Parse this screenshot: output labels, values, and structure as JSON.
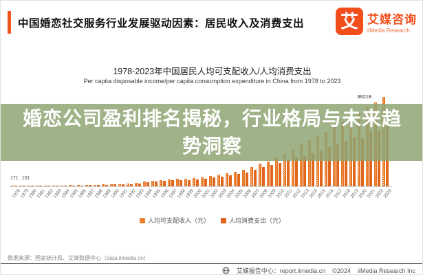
{
  "header": {
    "title": "中国婚恋社交服务行业发展驱动因素：居民收入及消费支出",
    "logo": {
      "glyph": "艾",
      "name_cn": "艾媒咨询",
      "name_en": "iiMedia Research"
    }
  },
  "chart": {
    "title": "1978-2023年中国居民人均可支配收入/人均消费支出",
    "subtitle": "Per capita disposable income/per capita consumption expenditure in China from 1978 to 2023"
  },
  "overlay": {
    "text": "婚恋公司盈利排名揭秘，行业格局与未来趋势洞察",
    "background_color": "#8fa573"
  },
  "chart_data": {
    "type": "bar",
    "title": "1978-2023年中国居民人均可支配收入/人均消费支出",
    "subtitle": "Per capita disposable income/per capita consumption expenditure in China from 1978 to 2023",
    "categories": [
      1978,
      1979,
      1980,
      1981,
      1982,
      1983,
      1984,
      1985,
      1986,
      1987,
      1988,
      1989,
      1990,
      1991,
      1992,
      1993,
      1994,
      1995,
      1996,
      1997,
      1998,
      1999,
      2000,
      2001,
      2002,
      2003,
      2004,
      2005,
      2006,
      2007,
      2008,
      2009,
      2010,
      2011,
      2012,
      2013,
      2014,
      2015,
      2016,
      2017,
      2018,
      2019,
      2020,
      2021,
      2022,
      2023
    ],
    "series": [
      {
        "name": "人均可支配收入（元）",
        "color": "#e87622",
        "pattern": "orange-with-white-dots",
        "values": [
          171,
          200,
          247,
          281,
          314,
          348,
          400,
          478,
          536,
          602,
          714,
          788,
          904,
          1001,
          1179,
          1478,
          1980,
          2460,
          2848,
          3070,
          3211,
          3346,
          3721,
          4070,
          4531,
          5007,
          5644,
          6385,
          7229,
          8583,
          9957,
          11000,
          12520,
          14100,
          16000,
          18311,
          20167,
          21966,
          23821,
          25974,
          28228,
          30733,
          32189,
          35128,
          36883,
          39218
        ]
      },
      {
        "name": "人均消费支出（元）",
        "color": "#e1661c",
        "pattern": "solid-orange",
        "values": [
          151,
          174,
          214,
          240,
          267,
          296,
          338,
          406,
          452,
          506,
          600,
          662,
          759,
          840,
          990,
          1241,
          1663,
          2066,
          2392,
          2578,
          2697,
          2810,
          3125,
          3418,
          3805,
          4205,
          4740,
          5363,
          6071,
          7209,
          8362,
          9219,
          10314,
          11497,
          12668,
          13220,
          14491,
          15712,
          17111,
          18322,
          19853,
          21559,
          21210,
          24100,
          24538,
          26796
        ]
      }
    ],
    "ylim": [
      0,
      40000
    ],
    "grid": false,
    "legend_position": "bottom",
    "data_labels": {
      "first_year": {
        "income": "171",
        "consumption": "151"
      },
      "last_year": {
        "income": "39218",
        "consumption": "26796"
      }
    }
  },
  "source_note": "数据来源：国家统计局、艾媒数据中心（data.iimedia.cn）",
  "footer": {
    "report_center": "艾媒报告中心：report.iimedia.cn",
    "copyright": "©2024",
    "company": "iiMedia Research Inc"
  }
}
